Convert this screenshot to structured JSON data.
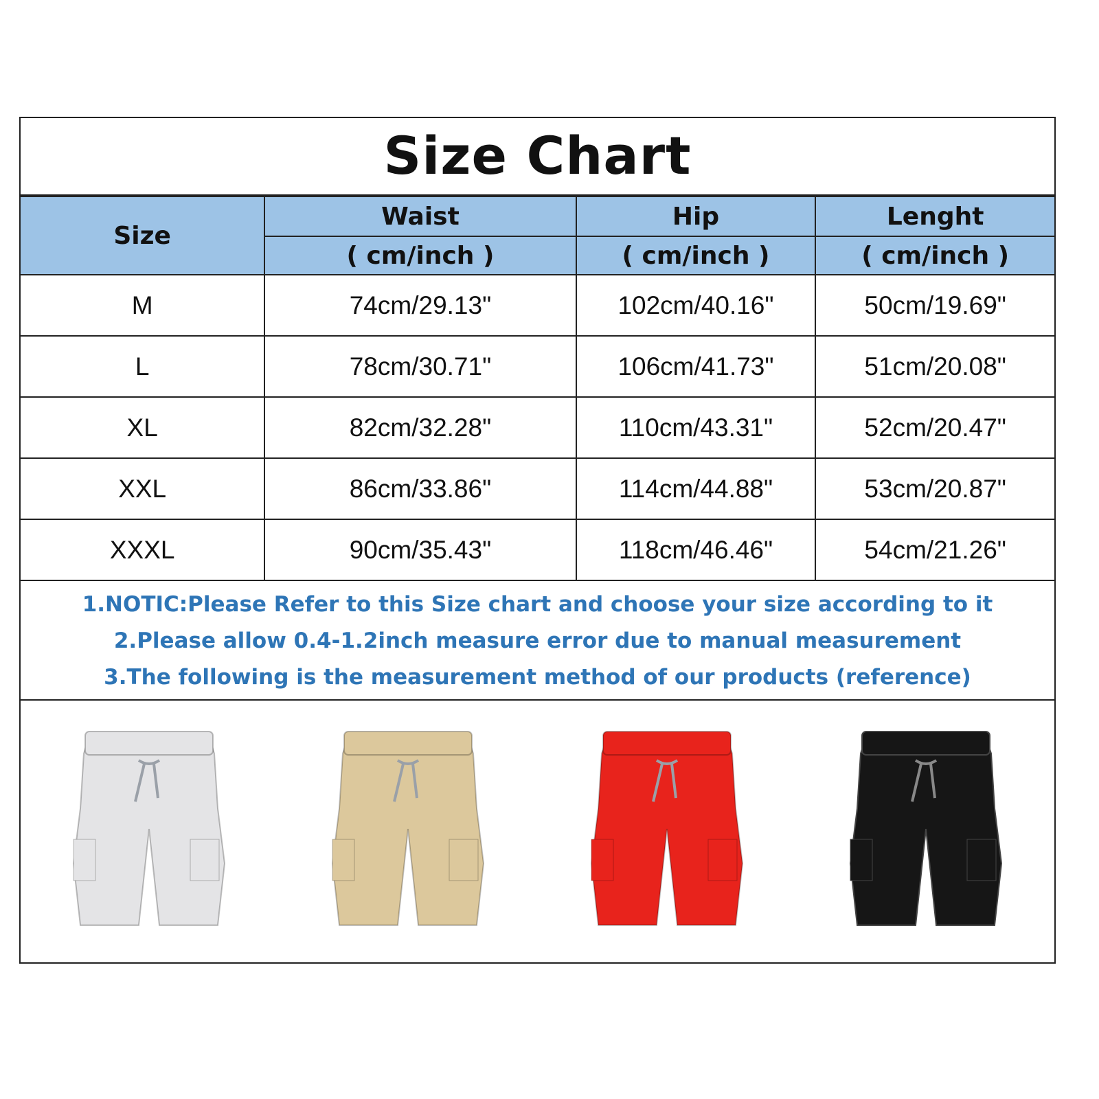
{
  "title": "Size Chart",
  "headers": {
    "size": "Size",
    "waist": "Waist",
    "hip": "Hip",
    "length": "Lenght",
    "unit": "( cm/inch )"
  },
  "rows": [
    {
      "size": "M",
      "waist": "74cm/29.13\"",
      "hip": "102cm/40.16\"",
      "length": "50cm/19.69\""
    },
    {
      "size": "L",
      "waist": "78cm/30.71\"",
      "hip": "106cm/41.73\"",
      "length": "51cm/20.08\""
    },
    {
      "size": "XL",
      "waist": "82cm/32.28\"",
      "hip": "110cm/43.31\"",
      "length": "52cm/20.47\""
    },
    {
      "size": "XXL",
      "waist": "86cm/33.86\"",
      "hip": "114cm/44.88\"",
      "length": "53cm/20.87\""
    },
    {
      "size": "XXXL",
      "waist": "90cm/35.43\"",
      "hip": "118cm/46.46\"",
      "length": "54cm/21.26\""
    }
  ],
  "notes": [
    "1.NOTIC:Please Refer to this Size chart and choose your size according to it",
    "2.Please allow 0.4-1.2inch measure error due to manual measurement",
    "3.The following is the measurement method of our products (reference)"
  ],
  "colors": {
    "header": "#9dc3e6",
    "notes": "#2e75b6",
    "shorts": [
      "#e4e4e6",
      "#dcc89c",
      "#e8231c",
      "#161616"
    ]
  }
}
